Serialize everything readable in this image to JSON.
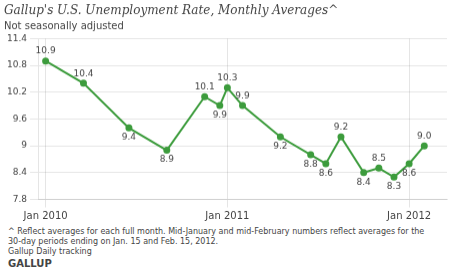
{
  "chart_data": {
    "type": "line",
    "title": "Gallup's U.S. Unemployment Rate, Monthly Averages^",
    "subtitle": "Not seasonally adjusted",
    "x": [
      0,
      2.5,
      5.5,
      8.0,
      10.5,
      11.5,
      12.0,
      13.0,
      15.5,
      17.5,
      18.5,
      19.5,
      21.0,
      22.0,
      23.0,
      24.0,
      25.0
    ],
    "values": [
      10.9,
      10.4,
      9.4,
      8.9,
      10.1,
      9.9,
      10.3,
      9.9,
      9.2,
      8.8,
      8.6,
      9.2,
      8.4,
      8.5,
      8.3,
      8.6,
      9.0
    ],
    "value_labels": [
      "10.9",
      "10.4",
      "9.4",
      "8.9",
      "10.1",
      "9.9",
      "10.3",
      "9.9",
      "9.2",
      "8.8",
      "8.6",
      "9.2",
      "8.4",
      "8.5",
      "8.3",
      "8.6",
      "9.0"
    ],
    "data_labels": true,
    "color": "#3d9c3d",
    "marker": "circle",
    "xlim": [
      -0.5,
      26.5
    ],
    "xticks": [
      {
        "value": 0,
        "label": "Jan 2010"
      },
      {
        "value": 12,
        "label": "Jan 2011"
      },
      {
        "value": 24,
        "label": "Jan 2012"
      }
    ],
    "ylim": [
      7.8,
      11.4
    ],
    "yticks": [
      7.8,
      8.4,
      9,
      9.6,
      10.2,
      10.8,
      11.4
    ],
    "grid": true,
    "annotations": [
      "^ Reflect averages for each full month. Mid-January and mid-February numbers reflect averages for the",
      "30-day periods ending on Jan. 15 and Feb. 15, 2012.",
      "Gallup Daily tracking",
      "GALLUP"
    ]
  }
}
